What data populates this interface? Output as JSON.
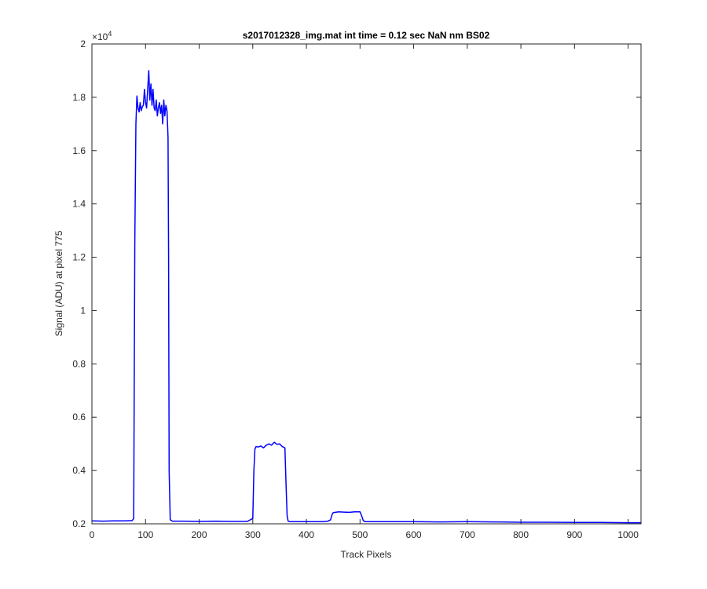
{
  "chart_data": {
    "type": "line",
    "title": "s2017012328_img.mat int time = 0.12 sec  NaN nm BS02",
    "xlabel": "Track Pixels",
    "ylabel": "Signal (ADU) at pixel 775",
    "xlim": [
      0,
      1024
    ],
    "ylim": [
      2000,
      20000
    ],
    "y_exponent_label": "×10",
    "y_exponent_value": "4",
    "x_ticks": [
      0,
      100,
      200,
      300,
      400,
      500,
      600,
      700,
      800,
      900,
      1000
    ],
    "x_tick_labels": [
      "0",
      "100",
      "200",
      "300",
      "400",
      "500",
      "600",
      "700",
      "800",
      "900",
      "1000"
    ],
    "y_ticks": [
      2000,
      4000,
      6000,
      8000,
      10000,
      12000,
      14000,
      16000,
      18000,
      20000
    ],
    "y_tick_labels": [
      "0.2",
      "0.4",
      "0.6",
      "0.8",
      "1",
      "1.2",
      "1.4",
      "1.6",
      "1.8",
      "2"
    ],
    "grid": false,
    "series": [
      {
        "color": "#0000ff",
        "x": [
          0,
          20,
          40,
          60,
          75,
          78,
          80,
          82,
          84,
          86,
          88,
          90,
          92,
          94,
          96,
          98,
          100,
          102,
          104,
          106,
          108,
          110,
          112,
          114,
          116,
          118,
          120,
          122,
          124,
          126,
          128,
          130,
          132,
          134,
          136,
          138,
          140,
          142,
          143,
          144,
          146,
          150,
          170,
          200,
          230,
          260,
          290,
          300,
          302,
          304,
          306,
          310,
          315,
          320,
          325,
          330,
          335,
          340,
          345,
          350,
          355,
          360,
          362,
          364,
          366,
          370,
          400,
          430,
          440,
          445,
          448,
          450,
          460,
          470,
          480,
          490,
          500,
          503,
          506,
          510,
          550,
          600,
          650,
          700,
          750,
          800,
          850,
          900,
          950,
          1000,
          1024
        ],
        "y": [
          2110,
          2100,
          2110,
          2110,
          2120,
          2200,
          12500,
          17000,
          18050,
          17600,
          17450,
          17800,
          17500,
          17650,
          17700,
          18300,
          17800,
          17600,
          18300,
          19000,
          17900,
          18500,
          17700,
          18300,
          17600,
          17500,
          17900,
          17300,
          17600,
          17800,
          17400,
          17700,
          17000,
          17900,
          17300,
          17700,
          17500,
          16500,
          12000,
          4000,
          2150,
          2100,
          2100,
          2090,
          2100,
          2090,
          2090,
          2200,
          4000,
          4800,
          4900,
          4880,
          4920,
          4850,
          4950,
          5000,
          4950,
          5060,
          4980,
          5000,
          4900,
          4850,
          3500,
          2300,
          2100,
          2080,
          2080,
          2080,
          2100,
          2150,
          2350,
          2420,
          2450,
          2440,
          2430,
          2450,
          2450,
          2300,
          2120,
          2080,
          2080,
          2080,
          2070,
          2080,
          2070,
          2060,
          2060,
          2050,
          2050,
          2040,
          2040
        ]
      }
    ]
  }
}
